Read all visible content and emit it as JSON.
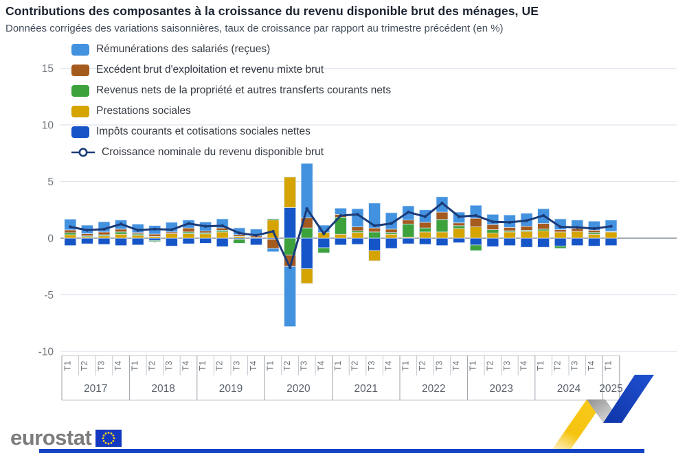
{
  "header": {
    "title": "Contributions des composantes à la croissance du revenu disponible brut des ménages, UE",
    "subtitle": "Données corrigées des variations saisonnières, taux de croissance par rapport au trimestre précédent (en %)"
  },
  "footer": {
    "logo_text": "eurostat"
  },
  "chart_data": {
    "type": "bar",
    "stacked": true,
    "grid": true,
    "legend_position": "top-left",
    "ylim": [
      -10,
      15
    ],
    "yticks": [
      15,
      10,
      5,
      0,
      -5,
      -10
    ],
    "categories": [
      "T1",
      "T2",
      "T3",
      "T4",
      "T1",
      "T2",
      "T3",
      "T4",
      "T1",
      "T2",
      "T3",
      "T4",
      "T1",
      "T2",
      "T3",
      "T4",
      "T1",
      "T2",
      "T3",
      "T4",
      "T1",
      "T2",
      "T3",
      "T4",
      "T1",
      "T2",
      "T3",
      "T4",
      "T1",
      "T2",
      "T3",
      "T4",
      "T1"
    ],
    "year_groups": [
      {
        "label": "2017",
        "span": 4
      },
      {
        "label": "2018",
        "span": 4
      },
      {
        "label": "2019",
        "span": 4
      },
      {
        "label": "2020",
        "span": 4
      },
      {
        "label": "2021",
        "span": 4
      },
      {
        "label": "2022",
        "span": 4
      },
      {
        "label": "2023",
        "span": 4
      },
      {
        "label": "2024",
        "span": 4
      },
      {
        "label": "2025",
        "span": 1
      }
    ],
    "series": [
      {
        "name": "Impôts courants et cotisations sociales nettes",
        "color": "#1655c8",
        "values": [
          -0.65,
          -0.5,
          -0.55,
          -0.65,
          -0.6,
          -0.2,
          -0.7,
          -0.5,
          -0.45,
          -0.75,
          -0.1,
          -0.6,
          -0.1,
          2.7,
          -2.7,
          -0.85,
          -0.6,
          -0.55,
          -1.1,
          -0.9,
          -0.5,
          -0.55,
          -0.65,
          -0.4,
          -0.6,
          -0.75,
          -0.65,
          -0.8,
          -0.8,
          -0.7,
          -0.65,
          -0.7,
          -0.65
        ]
      },
      {
        "name": "Prestations sociales",
        "color": "#d5a400",
        "values": [
          0.3,
          0.12,
          0.2,
          0.35,
          0.25,
          0.16,
          0.4,
          0.4,
          0.38,
          0.55,
          0.16,
          0.05,
          1.6,
          2.7,
          -1.3,
          0.5,
          0.35,
          0.5,
          -0.9,
          0.35,
          0.1,
          0.55,
          0.55,
          0.85,
          1.0,
          0.45,
          0.55,
          0.6,
          0.65,
          0.55,
          0.6,
          0.35,
          0.55
        ]
      },
      {
        "name": "Revenus nets de la propriété et autres transferts courants nets",
        "color": "#3da23c",
        "values": [
          0.18,
          0.08,
          0.1,
          0.2,
          0.12,
          -0.1,
          0.0,
          0.15,
          0.1,
          0.15,
          -0.35,
          0.0,
          0.1,
          -1.5,
          0.9,
          -0.45,
          1.5,
          0.15,
          0.55,
          0.15,
          1.15,
          0.35,
          1.1,
          0.25,
          -0.5,
          0.3,
          0.1,
          0.1,
          0.15,
          -0.2,
          0.0,
          0.15,
          0.0
        ]
      },
      {
        "name": "Excédent brut d'exploitation et revenu mixte brut",
        "color": "#a55a1e",
        "values": [
          0.25,
          0.2,
          0.25,
          0.25,
          0.12,
          0.2,
          0.15,
          0.35,
          0.15,
          0.2,
          0.15,
          0.15,
          -0.8,
          -1.0,
          0.9,
          0.0,
          0.25,
          0.35,
          0.35,
          0.3,
          0.35,
          0.5,
          0.65,
          0.25,
          0.75,
          0.45,
          0.3,
          0.35,
          0.5,
          0.2,
          0.25,
          0.2,
          0.05
        ]
      },
      {
        "name": "Rémunérations des salariés (reçues)",
        "color": "#4292e0",
        "values": [
          0.95,
          0.75,
          0.9,
          0.8,
          0.75,
          0.75,
          0.85,
          0.7,
          0.8,
          0.8,
          0.6,
          0.6,
          -0.3,
          -5.3,
          4.8,
          0.65,
          0.55,
          1.6,
          2.2,
          1.45,
          1.25,
          1.1,
          1.35,
          0.95,
          1.15,
          0.9,
          1.1,
          1.15,
          1.3,
          0.95,
          0.75,
          0.8,
          1.0
        ]
      }
    ],
    "line_series": {
      "name": "Croissance nominale du revenu disponible brut",
      "color": "#1b3b78",
      "values": [
        1.0,
        0.7,
        0.8,
        1.25,
        0.7,
        0.8,
        0.75,
        1.3,
        1.05,
        1.1,
        0.45,
        0.25,
        0.6,
        -2.6,
        2.6,
        0.4,
        2.0,
        2.1,
        1.1,
        1.3,
        2.3,
        1.9,
        3.1,
        1.9,
        2.0,
        1.45,
        1.4,
        1.55,
        2.0,
        1.0,
        0.95,
        0.85,
        1.05
      ]
    },
    "colors": {
      "grid": "#dee4ee",
      "zero_axis": "#878d96",
      "axis_label": "#6f747b",
      "year_label": "#5b626c",
      "axis_line_light": "#c2c7ce",
      "axis_line_dark": "#9aa0a8",
      "bar_border": "#dbe7f6"
    }
  }
}
